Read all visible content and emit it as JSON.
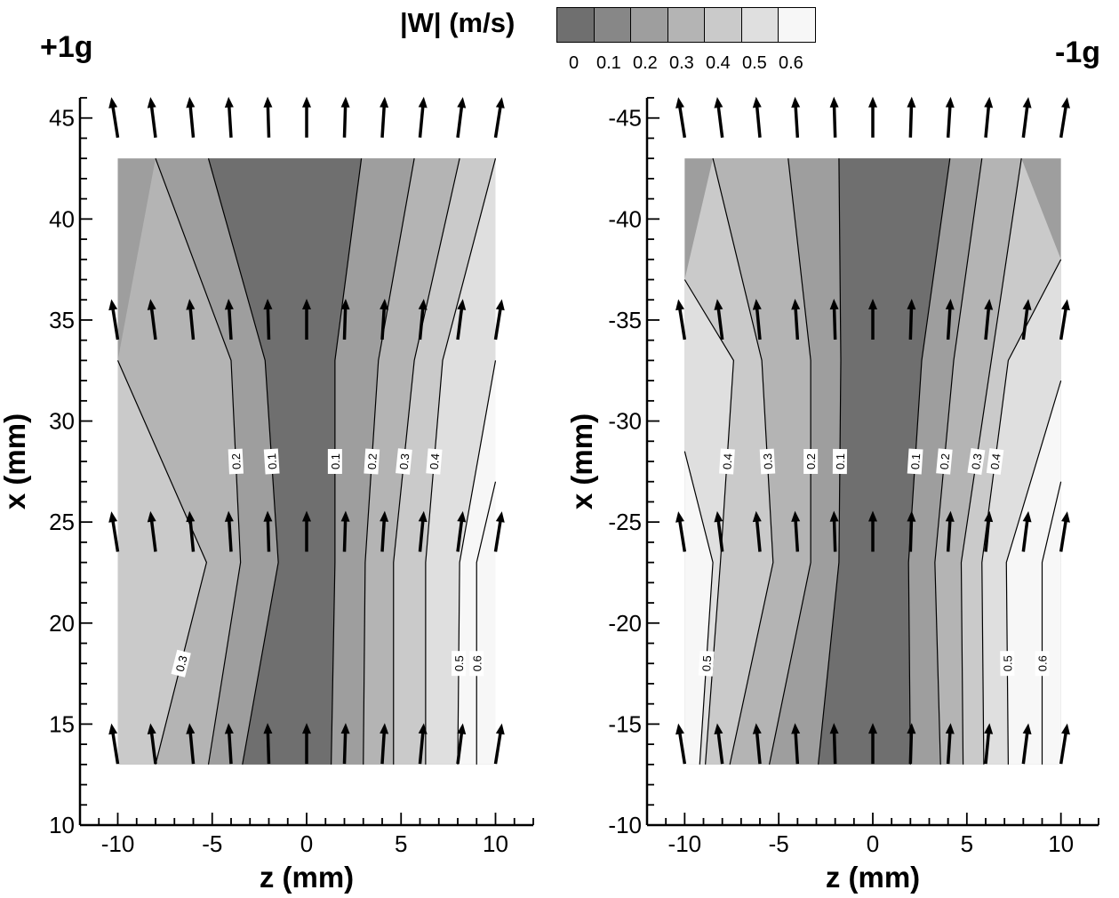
{
  "colorbar": {
    "title": "|W| (m/s)",
    "ticks": [
      "0",
      "0.1",
      "0.2",
      "0.3",
      "0.4",
      "0.5",
      "0.6"
    ],
    "colors": [
      "#4d4d4d",
      "#6f6f6f",
      "#878787",
      "#9e9e9e",
      "#b4b4b4",
      "#cacaca",
      "#dfdfdf",
      "#f7f7f7"
    ]
  },
  "chart_data": [
    {
      "type": "contour",
      "title": "+1g",
      "xlabel": "z (mm)",
      "ylabel": "x (mm)",
      "xlim": [
        -12,
        12
      ],
      "ylim": [
        10,
        46
      ],
      "xticks": [
        "-10",
        "-5",
        "0",
        "5",
        "10"
      ],
      "yticks": [
        "10",
        "15",
        "20",
        "25",
        "30",
        "35",
        "40",
        "45"
      ],
      "domain": {
        "z": [
          -10,
          10
        ],
        "x": [
          13,
          43
        ]
      },
      "contour_levels": [
        0.1,
        0.2,
        0.3,
        0.4,
        0.5,
        0.6
      ],
      "contour_labels": [
        "0.1",
        "0.2",
        "0.3",
        "0.4",
        "0.5",
        "0.6"
      ],
      "contours": [
        {
          "level": 0.1,
          "x": [
            13,
            23,
            33,
            43
          ],
          "z": [
            -3.4,
            -1.5,
            -2.2,
            -5.2
          ],
          "label": "0.1"
        },
        {
          "level": 0.2,
          "x": [
            13,
            23,
            33,
            43
          ],
          "z": [
            -5.2,
            -3.5,
            -4.0,
            -8.0
          ],
          "label": "0.2"
        },
        {
          "level": 0.3,
          "x": [
            13,
            23,
            33
          ],
          "z": [
            -8.0,
            -5.3,
            -10.0
          ],
          "label": "0.3"
        },
        {
          "level": 0.1,
          "x": [
            13,
            23,
            33,
            43
          ],
          "z": [
            1.3,
            1.5,
            1.5,
            2.9
          ],
          "label": "0.1"
        },
        {
          "level": 0.2,
          "x": [
            13,
            23,
            33,
            43
          ],
          "z": [
            3.0,
            3.1,
            3.8,
            5.7
          ],
          "label": "0.2"
        },
        {
          "level": 0.3,
          "x": [
            13,
            23,
            33,
            43
          ],
          "z": [
            4.6,
            4.6,
            5.7,
            8.1
          ],
          "label": "0.3"
        },
        {
          "level": 0.4,
          "x": [
            13,
            23,
            33,
            43
          ],
          "z": [
            6.3,
            6.3,
            7.2,
            10.0
          ],
          "label": "0.4"
        },
        {
          "level": 0.5,
          "x": [
            13,
            23,
            33
          ],
          "z": [
            8.0,
            8.1,
            10.0
          ],
          "label": "0.5"
        },
        {
          "level": 0.6,
          "x": [
            13,
            23,
            27
          ],
          "z": [
            9.0,
            9.0,
            10.0
          ],
          "label": "0.6"
        }
      ],
      "vector_rows_x": [
        14,
        24.5,
        35,
        45
      ],
      "vector_columns_z": [
        -10,
        -8,
        -6,
        -4,
        -2,
        0,
        2,
        4,
        6,
        8,
        10
      ]
    },
    {
      "type": "contour",
      "title": "-1g",
      "xlabel": "z (mm)",
      "ylabel": "x (mm)",
      "xlim": [
        -12,
        12
      ],
      "ylim": [
        -10,
        -46
      ],
      "xticks": [
        "-10",
        "-5",
        "0",
        "5",
        "10"
      ],
      "yticks": [
        "-10",
        "-15",
        "-20",
        "-25",
        "-30",
        "-35",
        "-40",
        "-45"
      ],
      "domain": {
        "z": [
          -10,
          10
        ],
        "x": [
          -13,
          -43
        ]
      },
      "contour_levels": [
        0.1,
        0.2,
        0.3,
        0.4,
        0.5,
        0.6
      ],
      "contour_labels": [
        "0.1",
        "0.2",
        "0.3",
        "0.4",
        "0.5",
        "0.6"
      ],
      "contours": [
        {
          "level": 0.1,
          "x": [
            -13,
            -23,
            -33,
            -43
          ],
          "z": [
            -2.9,
            -1.8,
            -1.7,
            -1.8
          ],
          "label": "0.1"
        },
        {
          "level": 0.2,
          "x": [
            -13,
            -23,
            -33,
            -43
          ],
          "z": [
            -5.5,
            -3.3,
            -3.3,
            -4.5
          ],
          "label": "0.2"
        },
        {
          "level": 0.3,
          "x": [
            -13,
            -23,
            -33,
            -43
          ],
          "z": [
            -7.6,
            -5.3,
            -5.9,
            -8.5
          ],
          "label": "0.3"
        },
        {
          "level": 0.4,
          "x": [
            -13,
            -23,
            -33,
            -37
          ],
          "z": [
            -8.9,
            -8.1,
            -7.4,
            -10.0
          ],
          "label": "0.4"
        },
        {
          "level": 0.5,
          "x": [
            -13,
            -23,
            -28.5
          ],
          "z": [
            -9.2,
            -8.5,
            -10.0
          ],
          "label": "0.5"
        },
        {
          "level": 0.1,
          "x": [
            -13,
            -23,
            -33,
            -43
          ],
          "z": [
            2.0,
            1.9,
            2.6,
            4.1
          ],
          "label": "0.1"
        },
        {
          "level": 0.2,
          "x": [
            -13,
            -23,
            -33,
            -43
          ],
          "z": [
            3.6,
            3.3,
            4.3,
            5.8
          ],
          "label": "0.2"
        },
        {
          "level": 0.3,
          "x": [
            -13,
            -23,
            -33,
            -43
          ],
          "z": [
            4.8,
            4.7,
            6.3,
            7.9
          ],
          "label": "0.3"
        },
        {
          "level": 0.4,
          "x": [
            -13,
            -23,
            -33,
            -38
          ],
          "z": [
            5.9,
            5.8,
            7.2,
            10.0
          ],
          "label": "0.4"
        },
        {
          "level": 0.5,
          "x": [
            -13,
            -23,
            -32
          ],
          "z": [
            7.2,
            7.1,
            10.0
          ],
          "label": "0.5"
        },
        {
          "level": 0.6,
          "x": [
            -13,
            -23,
            -27
          ],
          "z": [
            9.0,
            9.0,
            10.0
          ],
          "label": "0.6"
        }
      ],
      "vector_rows_x": [
        -14,
        -24.5,
        -35,
        -45
      ],
      "vector_columns_z": [
        -10,
        -8,
        -6,
        -4,
        -2,
        0,
        2,
        4,
        6,
        8,
        10
      ]
    }
  ]
}
